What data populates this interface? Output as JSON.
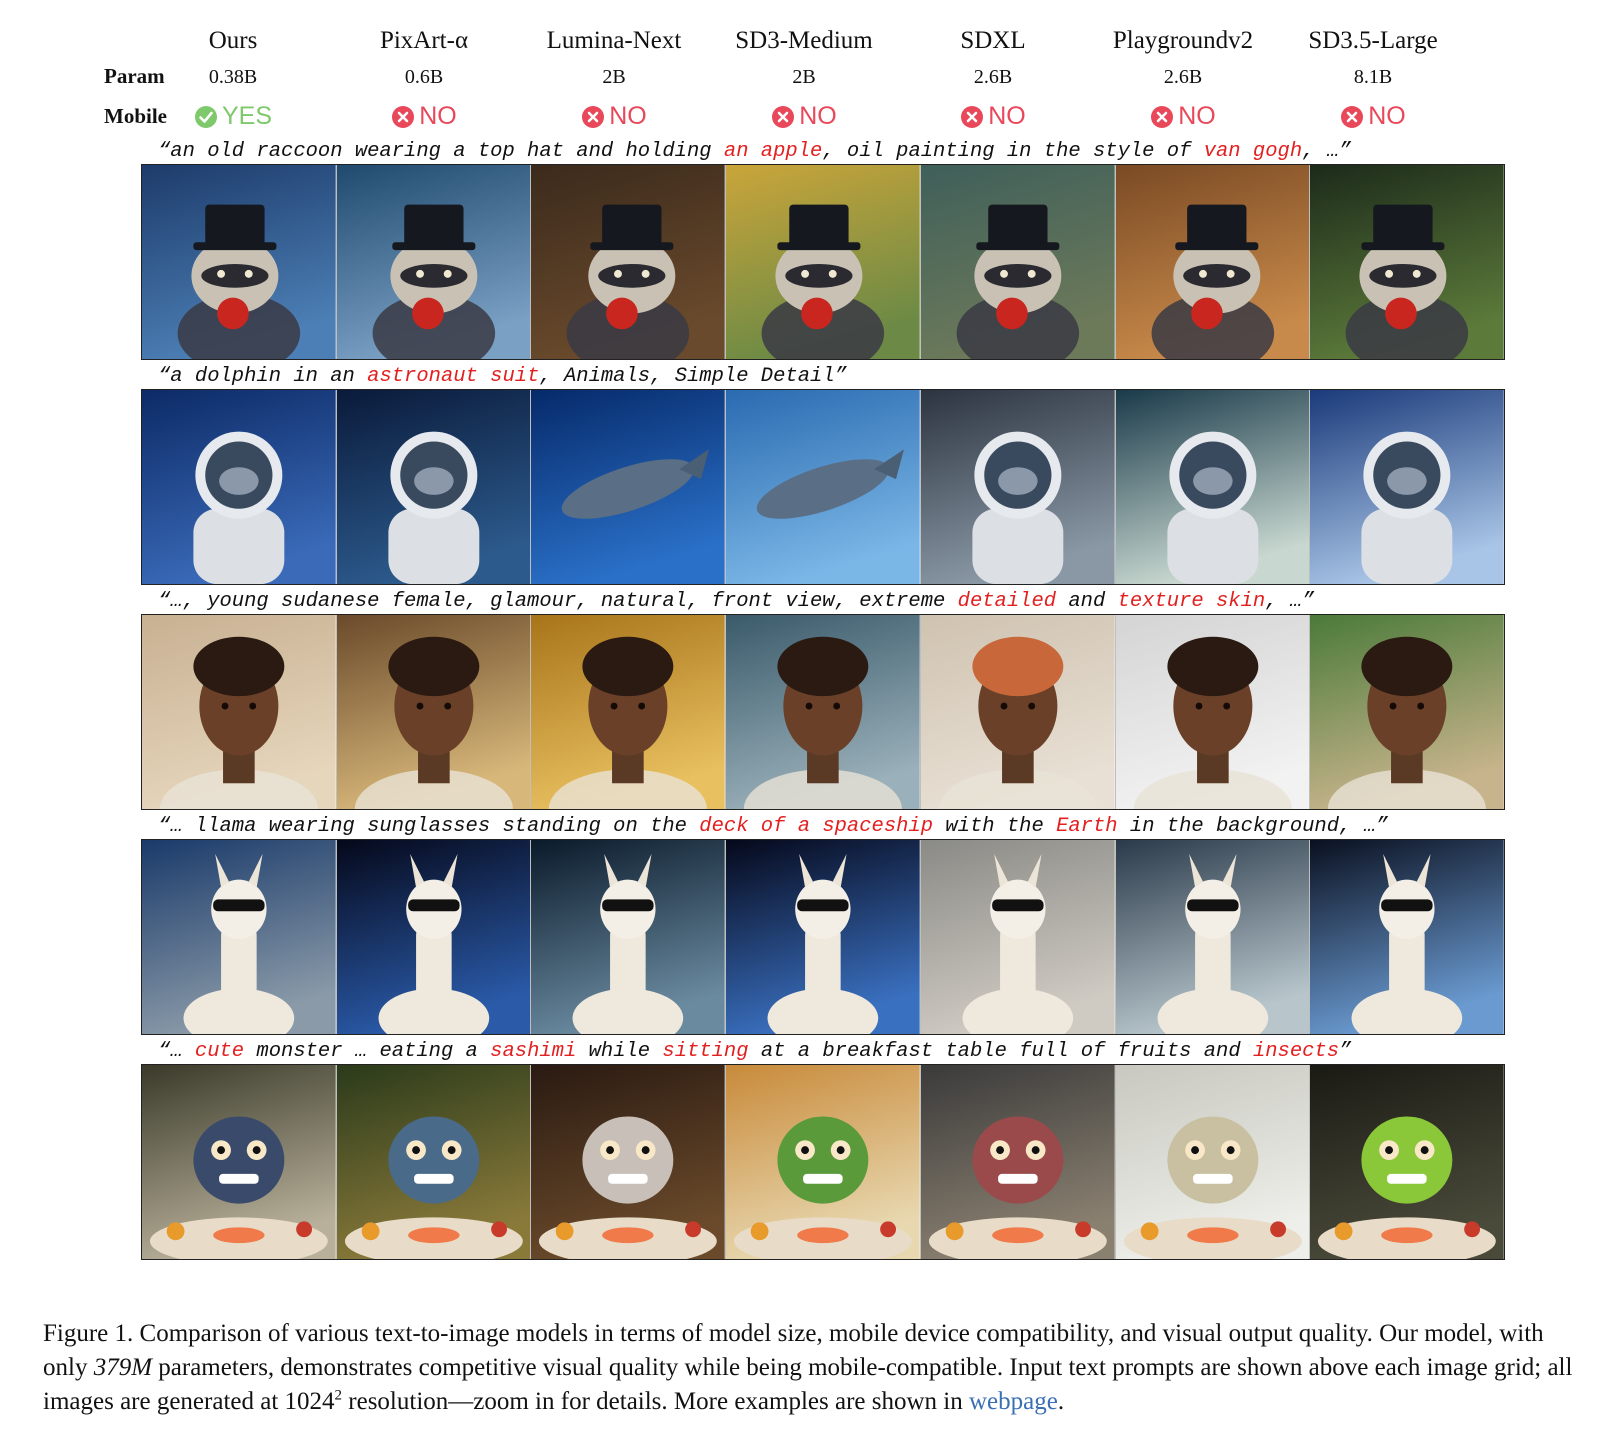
{
  "header": {
    "param_label": "Param",
    "mobile_label": "Mobile",
    "models": [
      {
        "name": "Ours",
        "param": "0.38B",
        "mobile": "YES"
      },
      {
        "name": "PixArt-α",
        "param": "0.6B",
        "mobile": "NO"
      },
      {
        "name": "Lumina-Next",
        "param": "2B",
        "mobile": "NO"
      },
      {
        "name": "SD3-Medium",
        "param": "2B",
        "mobile": "NO"
      },
      {
        "name": "SDXL",
        "param": "2.6B",
        "mobile": "NO"
      },
      {
        "name": "Playgroundv2",
        "param": "2.6B",
        "mobile": "NO"
      },
      {
        "name": "SD3.5-Large",
        "param": "8.1B",
        "mobile": "NO"
      }
    ]
  },
  "colors": {
    "yes": "#7dc96b",
    "no": "#e8485a",
    "highlight": "#e32020",
    "link": "#3a6fb5"
  },
  "rows": [
    {
      "subject": "raccoon",
      "prompt_parts": [
        {
          "text": "“an old raccoon wearing a top hat and holding ",
          "hl": false
        },
        {
          "text": "an apple",
          "hl": true
        },
        {
          "text": ", oil painting in the style of ",
          "hl": false
        },
        {
          "text": "van gogh",
          "hl": true
        },
        {
          "text": ", …”",
          "hl": false
        }
      ],
      "bg": [
        [
          "#1d3b6b",
          "#4c7fb5"
        ],
        [
          "#1f4a6e",
          "#7aa0c4"
        ],
        [
          "#3b2a1c",
          "#6a4a2c"
        ],
        [
          "#caa53a",
          "#6c8a45"
        ],
        [
          "#3f5f5a",
          "#6d7a5a"
        ],
        [
          "#7a4a24",
          "#c88a4a"
        ],
        [
          "#1c2a1a",
          "#5c7a3a"
        ]
      ]
    },
    {
      "subject": "dolphin",
      "prompt_parts": [
        {
          "text": "“a dolphin in an ",
          "hl": false
        },
        {
          "text": "astronaut suit",
          "hl": true
        },
        {
          "text": ", Animals, Simple Detail”",
          "hl": false
        }
      ],
      "bg": [
        [
          "#0c2a66",
          "#3a6ab8"
        ],
        [
          "#0a1a3a",
          "#2c5a8c"
        ],
        [
          "#062a6a",
          "#2a70c8"
        ],
        [
          "#2a6ab0",
          "#7ab6e6"
        ],
        [
          "#2c3440",
          "#8a98a6"
        ],
        [
          "#1a3a4a",
          "#c8d8d0"
        ],
        [
          "#1a3a7a",
          "#a8c4e6"
        ]
      ]
    },
    {
      "subject": "portrait",
      "prompt_parts": [
        {
          "text": "“…, young sudanese female, glamour, natural, front view, extreme ",
          "hl": false
        },
        {
          "text": "detailed",
          "hl": true
        },
        {
          "text": " and ",
          "hl": false
        },
        {
          "text": "texture skin",
          "hl": true
        },
        {
          "text": ", …”",
          "hl": false
        }
      ],
      "bg": [
        [
          "#c8b092",
          "#e6d6bc"
        ],
        [
          "#6a4a2a",
          "#d8b87a"
        ],
        [
          "#a8741a",
          "#e8c060"
        ],
        [
          "#3a5a6a",
          "#9ab0ba"
        ],
        [
          "#cfc2b0",
          "#e8e0d4"
        ],
        [
          "#d4d4d4",
          "#f2f2f2"
        ],
        [
          "#4a7a3a",
          "#c8b48c"
        ]
      ]
    },
    {
      "subject": "llama",
      "prompt_parts": [
        {
          "text": "“… llama wearing sunglasses standing on the ",
          "hl": false
        },
        {
          "text": "deck of a spaceship",
          "hl": true
        },
        {
          "text": " with the ",
          "hl": false
        },
        {
          "text": "Earth",
          "hl": true
        },
        {
          "text": " in the background, …”",
          "hl": false
        }
      ],
      "bg": [
        [
          "#1a3a6a",
          "#8a9aa8"
        ],
        [
          "#05081a",
          "#2a5aa8"
        ],
        [
          "#0a1a2a",
          "#6a8aa0"
        ],
        [
          "#05081a",
          "#3a70c0"
        ],
        [
          "#8a8a86",
          "#cfcac2"
        ],
        [
          "#2a3a4a",
          "#b8c6cc"
        ],
        [
          "#0a1020",
          "#6a9ad0"
        ]
      ]
    },
    {
      "subject": "monster",
      "prompt_parts": [
        {
          "text": "“… ",
          "hl": false
        },
        {
          "text": "cute",
          "hl": true
        },
        {
          "text": " monster … eating a ",
          "hl": false
        },
        {
          "text": "sashimi",
          "hl": true
        },
        {
          "text": " while ",
          "hl": false
        },
        {
          "text": "sitting",
          "hl": true
        },
        {
          "text": " at a breakfast table full of fruits and ",
          "hl": false
        },
        {
          "text": "insects",
          "hl": true
        },
        {
          "text": "”",
          "hl": false
        }
      ],
      "bg": [
        [
          "#3a3a2a",
          "#b8b09a"
        ],
        [
          "#2a3a1a",
          "#8a7a3a"
        ],
        [
          "#2a1a12",
          "#6a4a2a"
        ],
        [
          "#c88a3a",
          "#e8d8b0"
        ],
        [
          "#3a3a3a",
          "#8a8070"
        ],
        [
          "#c8c8c0",
          "#eeeeea"
        ],
        [
          "#1a1a14",
          "#4a4a3a"
        ]
      ]
    }
  ],
  "caption": {
    "part1": "Figure 1. Comparison of various text-to-image models in terms of model size, mobile device compatibility, and visual output quality. Our model, with only ",
    "italic": "379M",
    "part2": " parameters, demonstrates competitive visual quality while being mobile-compatible. Input text prompts are shown above each image grid; all images are generated at 1024",
    "sup": "2",
    "part3": " resolution—zoom in for details. More examples are shown in ",
    "link": "webpage",
    "part4": "."
  }
}
